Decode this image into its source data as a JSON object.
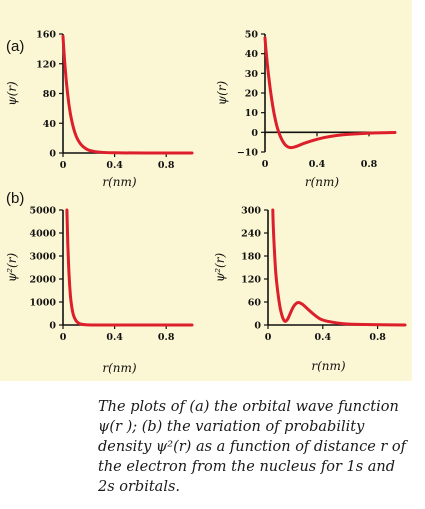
{
  "part_labels": {
    "a": "(a)",
    "b": "(b)"
  },
  "caption": "The plots of (a) the orbital wave function ψ(r ); (b) the variation of probability density ψ²(r) as a function of distance r of the electron from the nucleus for 1s and 2s orbitals.",
  "colors": {
    "curve": "#dd1f2b",
    "axis": "#111111",
    "panel": "#fbf6d3"
  },
  "chart_data": [
    {
      "type": "line",
      "id": "psi_1s",
      "xlabel": "r(nm)",
      "ylabel": "ψ(r)",
      "xlim": [
        0,
        1.0
      ],
      "ylim": [
        0,
        160
      ],
      "xticks": [
        0,
        0.4,
        0.8
      ],
      "xtick_labels": [
        "0",
        "0.4",
        "0.8"
      ],
      "yticks": [
        0,
        40,
        80,
        120,
        160
      ],
      "ytick_labels": [
        "0",
        "40",
        "80",
        "120",
        "160"
      ],
      "grid": false,
      "series": [
        {
          "x": [
            0,
            0.01,
            0.02,
            0.03,
            0.04,
            0.05,
            0.06,
            0.08,
            0.1,
            0.12,
            0.15,
            0.2,
            0.3,
            0.5,
            0.8,
            1.0
          ],
          "y": [
            157,
            130,
            107,
            89,
            73,
            60,
            50,
            34,
            23,
            16,
            9,
            3,
            0.5,
            0,
            0,
            0
          ]
        }
      ]
    },
    {
      "type": "line",
      "id": "psi_2s",
      "xlabel": "r(nm)",
      "ylabel": "ψ(r)",
      "xlim": [
        0,
        1.0
      ],
      "ylim": [
        -10,
        50
      ],
      "xticks": [
        0,
        0.4,
        0.8
      ],
      "xtick_labels": [
        "0",
        "0.4",
        "0.8"
      ],
      "yticks": [
        -10,
        0,
        10,
        20,
        30,
        40,
        50
      ],
      "ytick_labels": [
        "−10",
        "0",
        "10",
        "20",
        "30",
        "40",
        "50"
      ],
      "grid": false,
      "series": [
        {
          "x": [
            0,
            0.01,
            0.02,
            0.04,
            0.06,
            0.08,
            0.1,
            0.13,
            0.16,
            0.2,
            0.25,
            0.3,
            0.4,
            0.5,
            0.6,
            0.7,
            0.8,
            0.9,
            1.0
          ],
          "y": [
            48,
            40,
            33,
            22,
            13,
            6,
            1,
            -4,
            -7,
            -8,
            -7,
            -5.5,
            -3.5,
            -2,
            -1.2,
            -0.8,
            -0.4,
            -0.2,
            -0.1
          ]
        }
      ]
    },
    {
      "type": "line",
      "id": "psi2_1s",
      "xlabel": "r(nm)",
      "ylabel": "ψ²(r)",
      "xlim": [
        0,
        1.0
      ],
      "ylim": [
        0,
        5000
      ],
      "xticks": [
        0,
        0.4,
        0.8
      ],
      "xtick_labels": [
        "0",
        "0.4",
        "0.8"
      ],
      "yticks": [
        0,
        1000,
        2000,
        3000,
        4000,
        5000
      ],
      "ytick_labels": [
        "0",
        "1000",
        "2000",
        "3000",
        "4000",
        "5000"
      ],
      "grid": false,
      "series": [
        {
          "x": [
            0.03,
            0.035,
            0.04,
            0.05,
            0.06,
            0.07,
            0.08,
            0.1,
            0.12,
            0.15,
            0.2,
            0.3,
            0.5,
            0.8,
            1.0
          ],
          "y": [
            5000,
            4000,
            3000,
            1800,
            1100,
            700,
            420,
            180,
            70,
            20,
            3,
            0,
            0,
            0,
            0
          ]
        }
      ]
    },
    {
      "type": "line",
      "id": "psi2_2s",
      "xlabel": "r(nm)",
      "ylabel": "ψ²(r)",
      "xlim": [
        0,
        1.0
      ],
      "ylim": [
        0,
        300
      ],
      "xticks": [
        0,
        0.4,
        0.8
      ],
      "xtick_labels": [
        "0",
        "0.4",
        "0.8"
      ],
      "yticks": [
        0,
        60,
        120,
        180,
        240,
        300
      ],
      "ytick_labels": [
        "0",
        "60",
        "120",
        "180",
        "240",
        "300"
      ],
      "grid": false,
      "series": [
        {
          "x": [
            0.035,
            0.04,
            0.05,
            0.06,
            0.08,
            0.1,
            0.12,
            0.14,
            0.16,
            0.18,
            0.2,
            0.22,
            0.25,
            0.28,
            0.32,
            0.36,
            0.4,
            0.5,
            0.6,
            0.8,
            1.0
          ],
          "y": [
            300,
            240,
            170,
            120,
            60,
            25,
            8,
            12,
            28,
            45,
            55,
            60,
            55,
            45,
            32,
            20,
            12,
            5,
            2,
            0.5,
            0
          ]
        }
      ]
    }
  ]
}
